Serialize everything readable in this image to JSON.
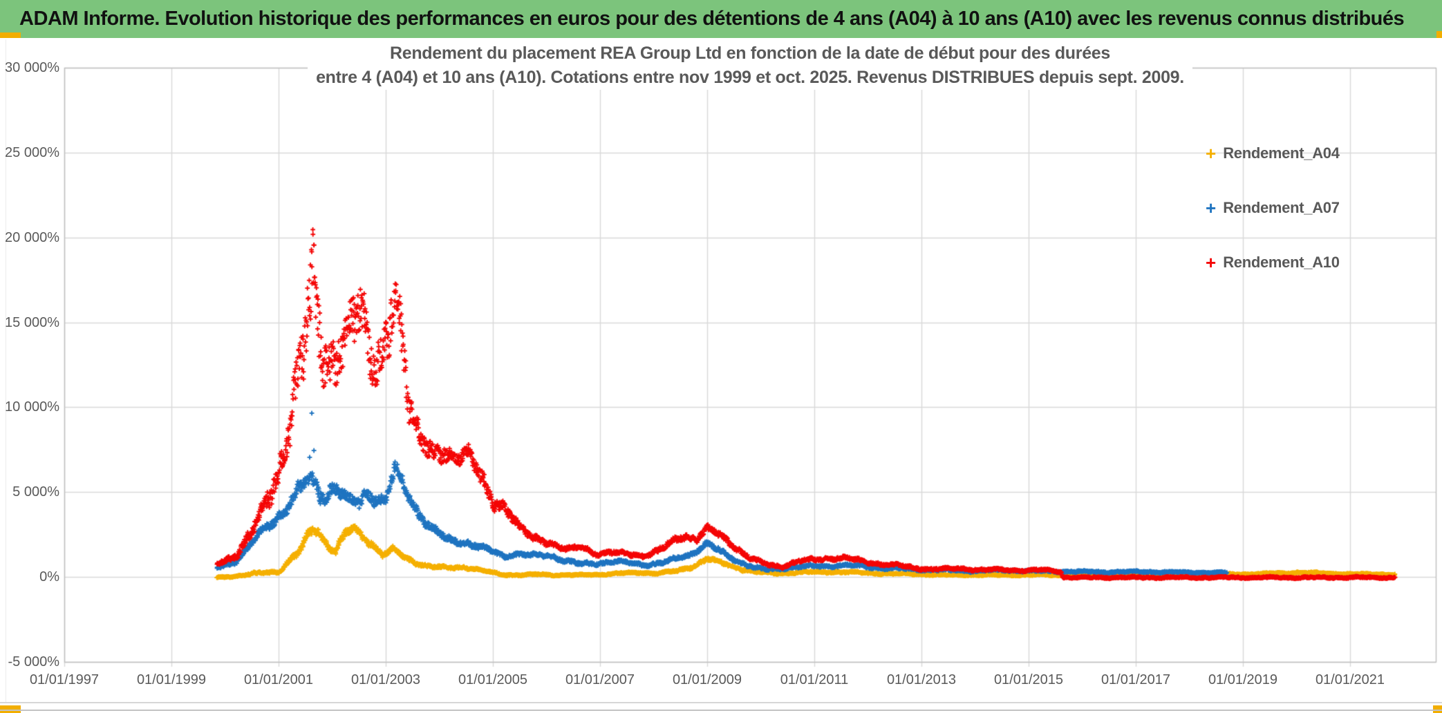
{
  "header": {
    "title": "ADAM Informe. Evolution historique des performances en euros pour des détentions de 4 ans (A04) à 10 ans (A10) avec les revenus connus distribués"
  },
  "chart": {
    "title_line1": "Rendement du placement REA Group Ltd en fonction de la date de début pour des durées",
    "title_line2": "entre 4 (A04) et 10 ans (A10). Cotations entre nov 1999 et oct. 2025. Revenus DISTRIBUES depuis sept. 2009.",
    "y_axis": {
      "labels": [
        "30 000%",
        "25 000%",
        "20 000%",
        "15 000%",
        "10 000%",
        "5 000%",
        "0%",
        "-5 000%"
      ],
      "values": [
        30000,
        25000,
        20000,
        15000,
        10000,
        5000,
        0,
        -5000
      ]
    },
    "x_axis": {
      "labels": [
        "01/01/1997",
        "01/01/1999",
        "01/01/2001",
        "01/01/2003",
        "01/01/2005",
        "01/01/2007",
        "01/01/2009",
        "01/01/2011",
        "01/01/2013",
        "01/01/2015",
        "01/01/2017",
        "01/01/2019",
        "01/01/2021"
      ],
      "tick_years": [
        1997,
        1999,
        2001,
        2003,
        2005,
        2007,
        2009,
        2011,
        2013,
        2015,
        2017,
        2019,
        2021
      ]
    },
    "legend": [
      {
        "label": "Rendement_A04",
        "color": "#f5b000"
      },
      {
        "label": "Rendement_A07",
        "color": "#1f74c0"
      },
      {
        "label": "Rendement_A10",
        "color": "#f40606"
      }
    ],
    "colors": {
      "grid": "#d9d9d9",
      "border": "#bfbfbf",
      "text": "#595959",
      "banner_bg": "#7cc47c",
      "accent_gold": "#f2ae00"
    }
  },
  "chart_data": {
    "type": "scatter",
    "marker": "plus",
    "title": "Rendement du placement REA Group Ltd en fonction de la date de début pour des durées entre 4 (A04) et 10 ans (A10). Cotations entre nov 1999 et oct. 2025. Revenus DISTRIBUES depuis sept. 2009.",
    "x_range": [
      1997,
      2022.66
    ],
    "y_range": [
      -5000,
      30000
    ],
    "x_unit": "start date (year)",
    "y_unit": "rendement %",
    "grid": true,
    "legend_position": "right",
    "note": "keypoints are [year, band_center_percent, band_halfwidth_percent]; dense daily scatter fills the band",
    "series": [
      {
        "name": "Rendement_A04",
        "color": "#f5b000",
        "seed": 11,
        "points_per_year": 150,
        "keypoints": [
          [
            1999.85,
            -30,
            60
          ],
          [
            2000.2,
            60,
            80
          ],
          [
            2000.6,
            200,
            120
          ],
          [
            2001.0,
            330,
            150
          ],
          [
            2001.2,
            950,
            260
          ],
          [
            2001.4,
            1500,
            320
          ],
          [
            2001.58,
            2600,
            430
          ],
          [
            2001.72,
            2850,
            430
          ],
          [
            2001.88,
            2050,
            350
          ],
          [
            2002.05,
            1500,
            300
          ],
          [
            2002.25,
            2500,
            400
          ],
          [
            2002.4,
            2850,
            400
          ],
          [
            2002.6,
            2350,
            350
          ],
          [
            2002.75,
            1950,
            300
          ],
          [
            2002.95,
            1300,
            260
          ],
          [
            2003.15,
            1600,
            260
          ],
          [
            2003.35,
            1150,
            220
          ],
          [
            2003.6,
            800,
            180
          ],
          [
            2003.85,
            600,
            150
          ],
          [
            2004.15,
            520,
            130
          ],
          [
            2004.45,
            600,
            130
          ],
          [
            2004.75,
            400,
            110
          ],
          [
            2005.0,
            250,
            95
          ],
          [
            2005.25,
            130,
            85
          ],
          [
            2005.55,
            110,
            75
          ],
          [
            2005.85,
            160,
            75
          ],
          [
            2006.15,
            120,
            75
          ],
          [
            2006.55,
            110,
            70
          ],
          [
            2006.95,
            140,
            70
          ],
          [
            2007.35,
            210,
            80
          ],
          [
            2007.75,
            260,
            90
          ],
          [
            2008.05,
            210,
            90
          ],
          [
            2008.45,
            360,
            110
          ],
          [
            2008.75,
            650,
            150
          ],
          [
            2009.0,
            1080,
            180
          ],
          [
            2009.3,
            800,
            150
          ],
          [
            2009.6,
            500,
            130
          ],
          [
            2009.9,
            300,
            100
          ],
          [
            2010.25,
            210,
            90
          ],
          [
            2010.65,
            260,
            90
          ],
          [
            2011.05,
            290,
            90
          ],
          [
            2011.45,
            300,
            90
          ],
          [
            2011.85,
            250,
            85
          ],
          [
            2012.25,
            210,
            85
          ],
          [
            2012.65,
            185,
            80
          ],
          [
            2013.05,
            155,
            80
          ],
          [
            2013.5,
            110,
            75
          ],
          [
            2014.0,
            125,
            75
          ],
          [
            2014.5,
            105,
            70
          ],
          [
            2015.0,
            125,
            70
          ],
          [
            2015.6,
            105,
            70
          ],
          [
            2016.1,
            125,
            70
          ],
          [
            2016.6,
            105,
            70
          ],
          [
            2017.1,
            125,
            70
          ],
          [
            2017.6,
            135,
            70
          ],
          [
            2018.1,
            120,
            70
          ],
          [
            2018.7,
            155,
            70
          ],
          [
            2019.2,
            185,
            70
          ],
          [
            2019.7,
            225,
            75
          ],
          [
            2020.05,
            280,
            80
          ],
          [
            2020.45,
            220,
            75
          ],
          [
            2020.95,
            185,
            70
          ],
          [
            2021.45,
            165,
            70
          ],
          [
            2021.84,
            150,
            70
          ]
        ],
        "outliers": []
      },
      {
        "name": "Rendement_A07",
        "color": "#1f74c0",
        "seed": 22,
        "points_per_year": 150,
        "keypoints": [
          [
            1999.85,
            550,
            150
          ],
          [
            2000.2,
            950,
            220
          ],
          [
            2000.5,
            1900,
            380
          ],
          [
            2000.75,
            2900,
            450
          ],
          [
            2001.0,
            3600,
            520
          ],
          [
            2001.2,
            4300,
            620
          ],
          [
            2001.45,
            5300,
            800
          ],
          [
            2001.63,
            5700,
            900
          ],
          [
            2001.85,
            4800,
            700
          ],
          [
            2002.05,
            5300,
            700
          ],
          [
            2002.3,
            4400,
            620
          ],
          [
            2002.5,
            4400,
            600
          ],
          [
            2002.65,
            5000,
            620
          ],
          [
            2002.85,
            4600,
            580
          ],
          [
            2003.0,
            4400,
            560
          ],
          [
            2003.17,
            6300,
            750
          ],
          [
            2003.4,
            5000,
            620
          ],
          [
            2003.6,
            3900,
            500
          ],
          [
            2003.85,
            2800,
            400
          ],
          [
            2004.15,
            2200,
            320
          ],
          [
            2004.45,
            2100,
            300
          ],
          [
            2004.75,
            1750,
            260
          ],
          [
            2005.0,
            1500,
            230
          ],
          [
            2005.2,
            1250,
            210
          ],
          [
            2005.45,
            1350,
            210
          ],
          [
            2005.75,
            1250,
            190
          ],
          [
            2006.05,
            1300,
            190
          ],
          [
            2006.35,
            950,
            170
          ],
          [
            2006.65,
            750,
            160
          ],
          [
            2006.95,
            820,
            160
          ],
          [
            2007.25,
            900,
            160
          ],
          [
            2007.55,
            820,
            150
          ],
          [
            2007.85,
            720,
            150
          ],
          [
            2008.15,
            820,
            160
          ],
          [
            2008.45,
            1100,
            190
          ],
          [
            2008.7,
            1350,
            210
          ],
          [
            2009.0,
            1950,
            260
          ],
          [
            2009.3,
            1400,
            210
          ],
          [
            2009.6,
            900,
            170
          ],
          [
            2009.9,
            520,
            140
          ],
          [
            2010.15,
            430,
            130
          ],
          [
            2010.5,
            560,
            140
          ],
          [
            2010.9,
            620,
            140
          ],
          [
            2011.3,
            660,
            140
          ],
          [
            2011.6,
            700,
            140
          ],
          [
            2011.9,
            620,
            130
          ],
          [
            2012.3,
            520,
            120
          ],
          [
            2012.7,
            470,
            115
          ],
          [
            2013.1,
            420,
            110
          ],
          [
            2013.5,
            390,
            105
          ],
          [
            2014.0,
            360,
            100
          ],
          [
            2014.5,
            390,
            100
          ],
          [
            2015.0,
            360,
            95
          ],
          [
            2015.5,
            330,
            95
          ],
          [
            2016.0,
            310,
            90
          ],
          [
            2016.5,
            290,
            90
          ],
          [
            2017.0,
            310,
            90
          ],
          [
            2017.5,
            290,
            85
          ],
          [
            2018.0,
            270,
            85
          ],
          [
            2018.7,
            250,
            85
          ]
        ],
        "outliers": [
          [
            2001.62,
            9650
          ],
          [
            2001.66,
            7450
          ],
          [
            2001.58,
            7050
          ]
        ]
      },
      {
        "name": "Rendement_A10",
        "color": "#f40606",
        "seed": 33,
        "points_per_year": 150,
        "keypoints": [
          [
            1999.85,
            750,
            200
          ],
          [
            2000.2,
            1300,
            300
          ],
          [
            2000.5,
            2500,
            600
          ],
          [
            2000.75,
            4200,
            900
          ],
          [
            2001.0,
            6300,
            1300
          ],
          [
            2001.2,
            8800,
            1900
          ],
          [
            2001.45,
            12500,
            3200
          ],
          [
            2001.63,
            17300,
            4500
          ],
          [
            2001.85,
            13500,
            2600
          ],
          [
            2002.05,
            12500,
            2200
          ],
          [
            2002.3,
            13800,
            2400
          ],
          [
            2002.55,
            16200,
            3000
          ],
          [
            2002.75,
            13200,
            2300
          ],
          [
            2002.95,
            12800,
            2300
          ],
          [
            2003.2,
            15800,
            3200
          ],
          [
            2003.45,
            10200,
            1600
          ],
          [
            2003.65,
            8500,
            1000
          ],
          [
            2003.9,
            7000,
            900
          ],
          [
            2004.2,
            7000,
            800
          ],
          [
            2004.55,
            7600,
            700
          ],
          [
            2004.8,
            5600,
            800
          ],
          [
            2005.0,
            4200,
            600
          ],
          [
            2005.25,
            4200,
            550
          ],
          [
            2005.5,
            3000,
            400
          ],
          [
            2005.75,
            2200,
            300
          ],
          [
            2006.1,
            2000,
            260
          ],
          [
            2006.4,
            1650,
            230
          ],
          [
            2006.65,
            1700,
            230
          ],
          [
            2006.95,
            1350,
            200
          ],
          [
            2007.2,
            1500,
            200
          ],
          [
            2007.5,
            1300,
            190
          ],
          [
            2007.8,
            1250,
            190
          ],
          [
            2008.1,
            1600,
            250
          ],
          [
            2008.4,
            2100,
            300
          ],
          [
            2008.6,
            2400,
            300
          ],
          [
            2008.8,
            2300,
            300
          ],
          [
            2009.0,
            2850,
            320
          ],
          [
            2009.25,
            2400,
            280
          ],
          [
            2009.55,
            1700,
            250
          ],
          [
            2009.85,
            1050,
            200
          ],
          [
            2010.15,
            680,
            150
          ],
          [
            2010.4,
            620,
            140
          ],
          [
            2010.7,
            950,
            170
          ],
          [
            2011.0,
            1000,
            160
          ],
          [
            2011.3,
            1100,
            170
          ],
          [
            2011.55,
            1150,
            170
          ],
          [
            2011.85,
            950,
            160
          ],
          [
            2012.15,
            800,
            150
          ],
          [
            2012.5,
            700,
            140
          ],
          [
            2012.9,
            520,
            130
          ],
          [
            2013.3,
            460,
            120
          ],
          [
            2013.7,
            500,
            120
          ],
          [
            2014.1,
            420,
            110
          ],
          [
            2014.5,
            430,
            110
          ],
          [
            2014.9,
            380,
            100
          ],
          [
            2015.25,
            420,
            100
          ],
          [
            2015.6,
            340,
            100
          ],
          [
            2015.64,
            -30,
            80
          ],
          [
            2021.84,
            -30,
            80
          ]
        ],
        "outliers": []
      }
    ]
  }
}
